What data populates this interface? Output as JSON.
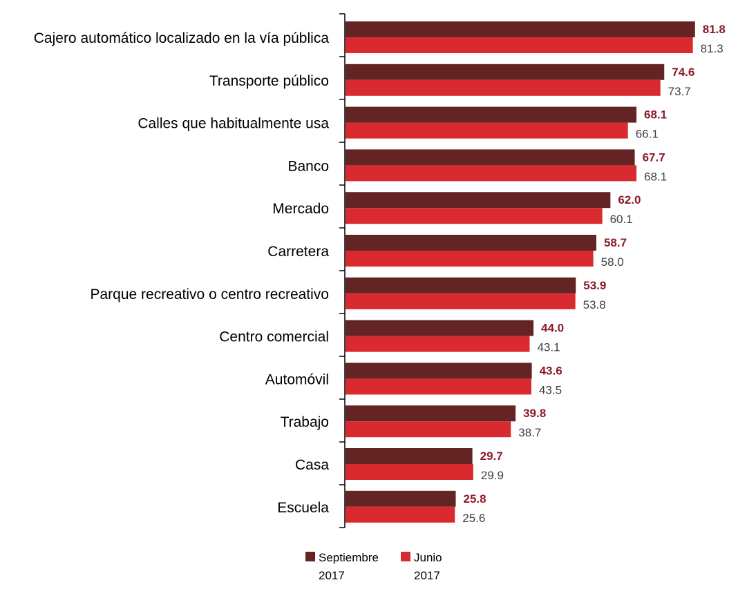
{
  "chart_data": {
    "type": "bar",
    "orientation": "horizontal",
    "categories": [
      "Cajero automático localizado en la vía pública",
      "Transporte público",
      "Calles que habitualmente usa",
      "Banco",
      "Mercado",
      "Carretera",
      "Parque recreativo o centro recreativo",
      "Centro comercial",
      "Automóvil",
      "Trabajo",
      "Casa",
      "Escuela"
    ],
    "series": [
      {
        "name_line1": "Septiembre",
        "name_line2": "2017",
        "color": "#632423",
        "label_color": "#8B1A2B",
        "values": [
          81.8,
          74.6,
          68.1,
          67.7,
          62.0,
          58.7,
          53.9,
          44.0,
          43.6,
          39.8,
          29.7,
          25.8
        ],
        "labels": [
          "81.8",
          "74.6",
          "68.1",
          "67.7",
          "62.0",
          "58.7",
          "53.9",
          "44.0",
          "43.6",
          "39.8",
          "29.7",
          "25.8"
        ]
      },
      {
        "name_line1": "Junio",
        "name_line2": "2017",
        "color": "#D92B2F",
        "label_color": "#404040",
        "values": [
          81.3,
          73.7,
          66.1,
          68.1,
          60.1,
          58.0,
          53.8,
          43.1,
          43.5,
          38.7,
          29.9,
          25.6
        ],
        "labels": [
          "81.3",
          "73.7",
          "66.1",
          "68.1",
          "60.1",
          "58.0",
          "53.8",
          "43.1",
          "43.5",
          "38.7",
          "29.9",
          "25.6"
        ]
      }
    ],
    "xlim": [
      0,
      90
    ],
    "grid": false,
    "legend_position": "bottom"
  }
}
